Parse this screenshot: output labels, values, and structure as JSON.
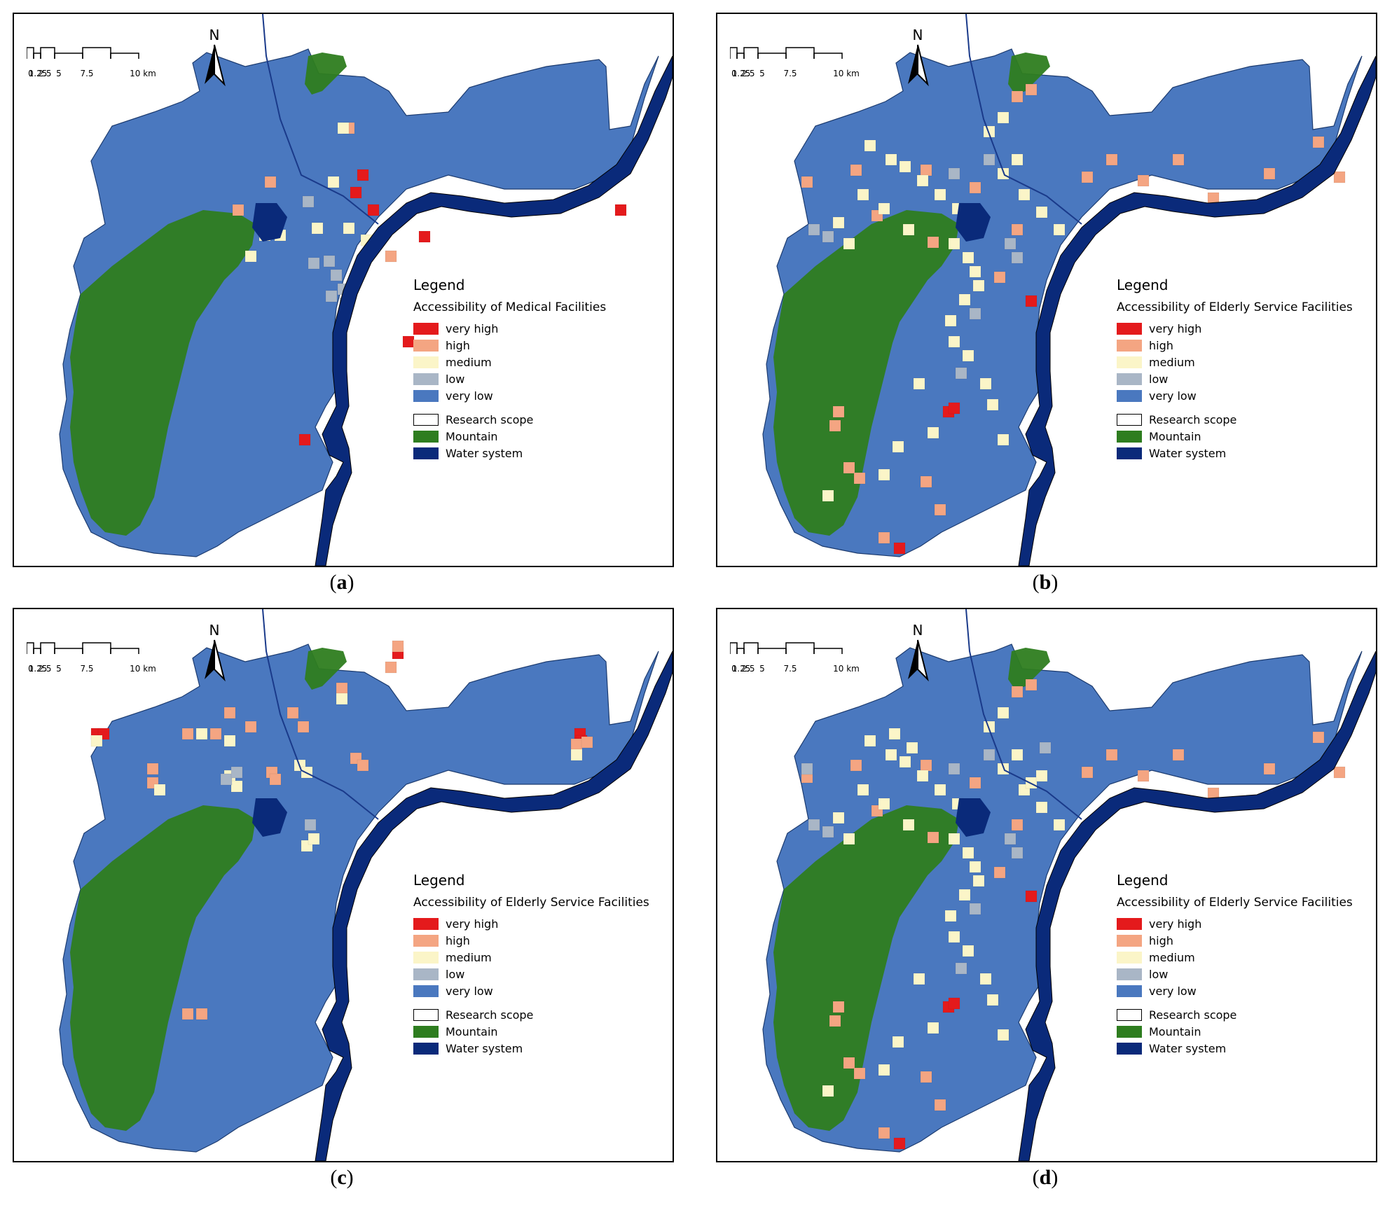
{
  "colors": {
    "very_high": "#e41a1c",
    "high": "#f4a582",
    "medium": "#fbf5c8",
    "low": "#a9b6c6",
    "very_low": "#4a78bf",
    "mountain": "#2e7d1f",
    "water": "#0a2a7a",
    "research_scope": "#ffffff"
  },
  "scale_bar": {
    "ticks": [
      "0",
      "1.25",
      "2.5",
      "5",
      "7.5",
      "10 km"
    ]
  },
  "north_label": "N",
  "legend": {
    "title": "Legend",
    "classes": [
      {
        "key": "very_high",
        "label": "very high"
      },
      {
        "key": "high",
        "label": "high"
      },
      {
        "key": "medium",
        "label": "medium"
      },
      {
        "key": "low",
        "label": "low"
      },
      {
        "key": "very_low",
        "label": "very low"
      }
    ],
    "extras": [
      {
        "key": "research_scope",
        "label": "Research scope"
      },
      {
        "key": "mountain",
        "label": "Mountain"
      },
      {
        "key": "water",
        "label": "Water system"
      }
    ]
  },
  "panels": [
    {
      "id": "a",
      "caption_letter": "a",
      "subtitle": "Accessibility of Medical Facilities"
    },
    {
      "id": "b",
      "caption_letter": "b",
      "subtitle": "Accessibility of Elderly Service Facilities"
    },
    {
      "id": "c",
      "caption_letter": "c",
      "subtitle": "Accessibility of Elderly Service Facilities"
    },
    {
      "id": "d",
      "caption_letter": "d",
      "subtitle": "Accessibility of Elderly Service Facilities"
    }
  ],
  "cell_patterns": {
    "a": [
      [
        "very_high",
        490,
        222
      ],
      [
        "very_high",
        480,
        247
      ],
      [
        "very_high",
        505,
        272
      ],
      [
        "very_high",
        578,
        310
      ],
      [
        "very_high",
        858,
        272
      ],
      [
        "very_high",
        555,
        460
      ],
      [
        "very_high",
        407,
        600
      ],
      [
        "high",
        358,
        232
      ],
      [
        "high",
        312,
        272
      ],
      [
        "high",
        470,
        155
      ],
      [
        "high",
        530,
        338
      ],
      [
        "medium",
        448,
        232
      ],
      [
        "medium",
        350,
        308
      ],
      [
        "medium",
        372,
        308
      ],
      [
        "medium",
        330,
        338
      ],
      [
        "medium",
        425,
        298
      ],
      [
        "medium",
        470,
        298
      ],
      [
        "medium",
        495,
        315
      ],
      [
        "medium",
        462,
        155
      ],
      [
        "low",
        412,
        260
      ],
      [
        "low",
        420,
        348
      ],
      [
        "low",
        442,
        345
      ],
      [
        "low",
        452,
        365
      ],
      [
        "low",
        462,
        385
      ],
      [
        "low",
        445,
        395
      ],
      [
        "low",
        465,
        405
      ]
    ],
    "b": [
      [
        "very_high",
        322,
        560
      ],
      [
        "very_high",
        330,
        555
      ],
      [
        "very_high",
        440,
        402
      ],
      [
        "very_high",
        252,
        755
      ],
      [
        "high",
        120,
        232
      ],
      [
        "high",
        190,
        215
      ],
      [
        "high",
        220,
        280
      ],
      [
        "high",
        290,
        215
      ],
      [
        "high",
        300,
        318
      ],
      [
        "high",
        395,
        368
      ],
      [
        "high",
        360,
        240
      ],
      [
        "high",
        420,
        300
      ],
      [
        "high",
        520,
        225
      ],
      [
        "high",
        555,
        200
      ],
      [
        "high",
        600,
        230
      ],
      [
        "high",
        650,
        200
      ],
      [
        "high",
        700,
        255
      ],
      [
        "high",
        780,
        220
      ],
      [
        "high",
        850,
        175
      ],
      [
        "high",
        880,
        225
      ],
      [
        "high",
        160,
        580
      ],
      [
        "high",
        180,
        640
      ],
      [
        "high",
        195,
        655
      ],
      [
        "high",
        290,
        660
      ],
      [
        "high",
        310,
        700
      ],
      [
        "high",
        230,
        740
      ],
      [
        "high",
        165,
        560
      ],
      [
        "high",
        420,
        110
      ],
      [
        "high",
        440,
        100
      ],
      [
        "medium",
        210,
        180
      ],
      [
        "medium",
        240,
        200
      ],
      [
        "medium",
        260,
        210
      ],
      [
        "medium",
        285,
        230
      ],
      [
        "medium",
        310,
        250
      ],
      [
        "medium",
        335,
        270
      ],
      [
        "medium",
        360,
        290
      ],
      [
        "medium",
        330,
        320
      ],
      [
        "medium",
        350,
        340
      ],
      [
        "medium",
        360,
        360
      ],
      [
        "medium",
        365,
        380
      ],
      [
        "medium",
        345,
        400
      ],
      [
        "medium",
        325,
        430
      ],
      [
        "medium",
        330,
        460
      ],
      [
        "medium",
        350,
        480
      ],
      [
        "medium",
        375,
        520
      ],
      [
        "medium",
        385,
        550
      ],
      [
        "medium",
        400,
        600
      ],
      [
        "medium",
        280,
        520
      ],
      [
        "medium",
        300,
        590
      ],
      [
        "medium",
        250,
        610
      ],
      [
        "medium",
        230,
        650
      ],
      [
        "medium",
        430,
        250
      ],
      [
        "medium",
        455,
        275
      ],
      [
        "medium",
        480,
        300
      ],
      [
        "medium",
        500,
        330
      ],
      [
        "medium",
        400,
        140
      ],
      [
        "medium",
        380,
        160
      ],
      [
        "medium",
        165,
        290
      ],
      [
        "medium",
        180,
        320
      ],
      [
        "medium",
        200,
        250
      ],
      [
        "medium",
        230,
        270
      ],
      [
        "medium",
        265,
        300
      ],
      [
        "medium",
        420,
        200
      ],
      [
        "medium",
        400,
        220
      ],
      [
        "medium",
        150,
        680
      ],
      [
        "low",
        130,
        300
      ],
      [
        "low",
        150,
        310
      ],
      [
        "low",
        330,
        220
      ],
      [
        "low",
        380,
        200
      ],
      [
        "low",
        410,
        320
      ],
      [
        "low",
        420,
        340
      ],
      [
        "low",
        360,
        420
      ],
      [
        "low",
        340,
        505
      ]
    ],
    "c": [
      [
        "very_high",
        110,
        170
      ],
      [
        "very_high",
        120,
        170
      ],
      [
        "very_high",
        800,
        170
      ],
      [
        "very_high",
        802,
        180
      ],
      [
        "very_high",
        540,
        55
      ],
      [
        "high",
        240,
        170
      ],
      [
        "high",
        280,
        170
      ],
      [
        "high",
        300,
        140
      ],
      [
        "high",
        330,
        160
      ],
      [
        "high",
        390,
        140
      ],
      [
        "high",
        405,
        160
      ],
      [
        "high",
        480,
        205
      ],
      [
        "high",
        490,
        215
      ],
      [
        "high",
        795,
        185
      ],
      [
        "high",
        810,
        182
      ],
      [
        "high",
        530,
        75
      ],
      [
        "high",
        540,
        45
      ],
      [
        "high",
        460,
        105
      ],
      [
        "high",
        190,
        220
      ],
      [
        "high",
        190,
        240
      ],
      [
        "high",
        240,
        570
      ],
      [
        "high",
        260,
        570
      ],
      [
        "high",
        360,
        225
      ],
      [
        "high",
        365,
        235
      ],
      [
        "medium",
        260,
        170
      ],
      [
        "medium",
        300,
        180
      ],
      [
        "medium",
        400,
        215
      ],
      [
        "medium",
        410,
        225
      ],
      [
        "medium",
        300,
        230
      ],
      [
        "medium",
        310,
        245
      ],
      [
        "medium",
        410,
        330
      ],
      [
        "medium",
        420,
        320
      ],
      [
        "medium",
        200,
        250
      ],
      [
        "medium",
        110,
        180
      ],
      [
        "medium",
        460,
        120
      ],
      [
        "medium",
        795,
        200
      ],
      [
        "low",
        295,
        235
      ],
      [
        "low",
        310,
        225
      ],
      [
        "low",
        415,
        300
      ]
    ],
    "d": [
      [
        "very_high",
        322,
        560
      ],
      [
        "very_high",
        330,
        555
      ],
      [
        "very_high",
        440,
        402
      ],
      [
        "very_high",
        252,
        755
      ],
      [
        "high",
        120,
        232
      ],
      [
        "high",
        190,
        215
      ],
      [
        "high",
        220,
        280
      ],
      [
        "high",
        290,
        215
      ],
      [
        "high",
        300,
        318
      ],
      [
        "high",
        395,
        368
      ],
      [
        "high",
        360,
        240
      ],
      [
        "high",
        420,
        300
      ],
      [
        "high",
        520,
        225
      ],
      [
        "high",
        555,
        200
      ],
      [
        "high",
        600,
        230
      ],
      [
        "high",
        650,
        200
      ],
      [
        "high",
        700,
        255
      ],
      [
        "high",
        780,
        220
      ],
      [
        "high",
        850,
        175
      ],
      [
        "high",
        880,
        225
      ],
      [
        "high",
        160,
        580
      ],
      [
        "high",
        180,
        640
      ],
      [
        "high",
        195,
        655
      ],
      [
        "high",
        290,
        660
      ],
      [
        "high",
        310,
        700
      ],
      [
        "high",
        230,
        740
      ],
      [
        "high",
        165,
        560
      ],
      [
        "high",
        420,
        110
      ],
      [
        "high",
        440,
        100
      ],
      [
        "medium",
        210,
        180
      ],
      [
        "medium",
        240,
        200
      ],
      [
        "medium",
        260,
        210
      ],
      [
        "medium",
        285,
        230
      ],
      [
        "medium",
        310,
        250
      ],
      [
        "medium",
        335,
        270
      ],
      [
        "medium",
        360,
        290
      ],
      [
        "medium",
        330,
        320
      ],
      [
        "medium",
        350,
        340
      ],
      [
        "medium",
        360,
        360
      ],
      [
        "medium",
        365,
        380
      ],
      [
        "medium",
        345,
        400
      ],
      [
        "medium",
        325,
        430
      ],
      [
        "medium",
        330,
        460
      ],
      [
        "medium",
        350,
        480
      ],
      [
        "medium",
        375,
        520
      ],
      [
        "medium",
        385,
        550
      ],
      [
        "medium",
        400,
        600
      ],
      [
        "medium",
        280,
        520
      ],
      [
        "medium",
        300,
        590
      ],
      [
        "medium",
        250,
        610
      ],
      [
        "medium",
        230,
        650
      ],
      [
        "medium",
        430,
        250
      ],
      [
        "medium",
        455,
        275
      ],
      [
        "medium",
        480,
        300
      ],
      [
        "medium",
        500,
        330
      ],
      [
        "medium",
        400,
        140
      ],
      [
        "medium",
        380,
        160
      ],
      [
        "medium",
        165,
        290
      ],
      [
        "medium",
        180,
        320
      ],
      [
        "medium",
        200,
        250
      ],
      [
        "medium",
        230,
        270
      ],
      [
        "medium",
        265,
        300
      ],
      [
        "medium",
        420,
        200
      ],
      [
        "medium",
        400,
        220
      ],
      [
        "medium",
        150,
        680
      ],
      [
        "medium",
        440,
        240
      ],
      [
        "medium",
        455,
        230
      ],
      [
        "medium",
        245,
        170
      ],
      [
        "medium",
        270,
        190
      ],
      [
        "low",
        130,
        300
      ],
      [
        "low",
        150,
        310
      ],
      [
        "low",
        330,
        220
      ],
      [
        "low",
        380,
        200
      ],
      [
        "low",
        410,
        320
      ],
      [
        "low",
        420,
        340
      ],
      [
        "low",
        360,
        420
      ],
      [
        "low",
        340,
        505
      ],
      [
        "low",
        120,
        220
      ],
      [
        "low",
        460,
        190
      ]
    ]
  }
}
